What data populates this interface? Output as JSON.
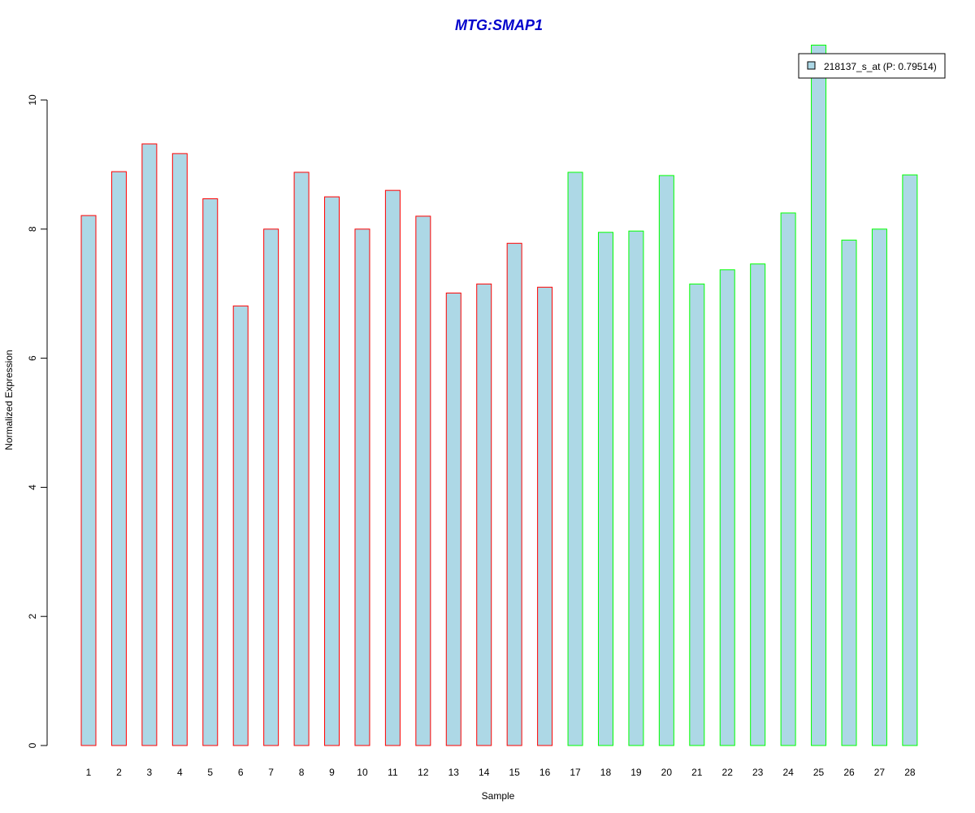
{
  "chart_data": {
    "type": "bar",
    "title": "MTG:SMAP1",
    "xlabel": "Sample",
    "ylabel": "Normalized Expression",
    "ylim": [
      0,
      10.85
    ],
    "yticks": [
      0,
      2,
      4,
      6,
      8,
      10
    ],
    "categories": [
      "1",
      "2",
      "3",
      "4",
      "5",
      "6",
      "7",
      "8",
      "9",
      "10",
      "11",
      "12",
      "13",
      "14",
      "15",
      "16",
      "17",
      "18",
      "19",
      "20",
      "21",
      "22",
      "23",
      "24",
      "25",
      "26",
      "27",
      "28"
    ],
    "series": [
      {
        "name": "218137_s_at (P: 0.79514)",
        "values": [
          8.21,
          8.89,
          9.32,
          9.17,
          8.47,
          6.81,
          8.0,
          8.88,
          8.5,
          8.0,
          8.6,
          8.2,
          7.01,
          7.15,
          7.78,
          7.1,
          8.88,
          7.95,
          7.97,
          8.83,
          7.15,
          7.37,
          7.46,
          8.25,
          10.85,
          7.83,
          8.0,
          8.84
        ]
      }
    ],
    "groups": [
      "red",
      "red",
      "red",
      "red",
      "red",
      "red",
      "red",
      "red",
      "red",
      "red",
      "red",
      "red",
      "red",
      "red",
      "red",
      "red",
      "green",
      "green",
      "green",
      "green",
      "green",
      "green",
      "green",
      "green",
      "green",
      "green",
      "green",
      "green"
    ],
    "colors": {
      "fill": "#add8e6",
      "red": "#ff0000",
      "green": "#00ff00",
      "title": "#0000cc"
    },
    "grid": false,
    "legend_position": "top-right"
  }
}
